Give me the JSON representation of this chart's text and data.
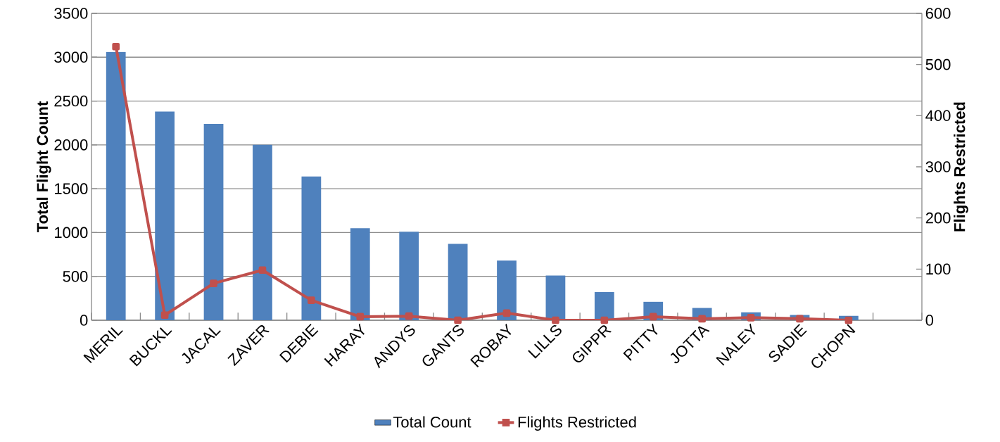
{
  "chart_data": {
    "type": "bar",
    "categories": [
      "MERIL",
      "BUCKL",
      "JACAL",
      "ZAVER",
      "DEBIE",
      "HARAY",
      "ANDYS",
      "GANTS",
      "ROBAY",
      "LILLS",
      "GIPPR",
      "PITTY",
      "JOTTA",
      "NALEY",
      "SADIE",
      "CHOPN",
      null
    ],
    "series": [
      {
        "name": "Total Count",
        "color": "#4f81bd",
        "values": [
          3060,
          2380,
          2240,
          2000,
          1640,
          1050,
          1010,
          870,
          680,
          510,
          320,
          210,
          140,
          90,
          60,
          50,
          null
        ]
      },
      {
        "name": "Flights Restricted",
        "type": "line",
        "axis": "y2",
        "color": "#c0504d",
        "values": [
          535,
          10,
          72,
          98,
          39,
          7,
          8,
          0,
          14,
          0,
          0,
          7,
          3,
          5,
          3,
          0,
          null
        ]
      }
    ],
    "ylabel": "Total Flight Count",
    "y2label": "Flights Restricted",
    "ylim": [
      0,
      3500
    ],
    "yticks": [
      0,
      500,
      1000,
      1500,
      2000,
      2500,
      3000,
      3500
    ],
    "y2lim": [
      0,
      600
    ],
    "y2ticks": [
      0,
      100,
      200,
      300,
      400,
      500,
      600
    ],
    "grid": "y",
    "legend": "bottom",
    "marker": "square"
  }
}
